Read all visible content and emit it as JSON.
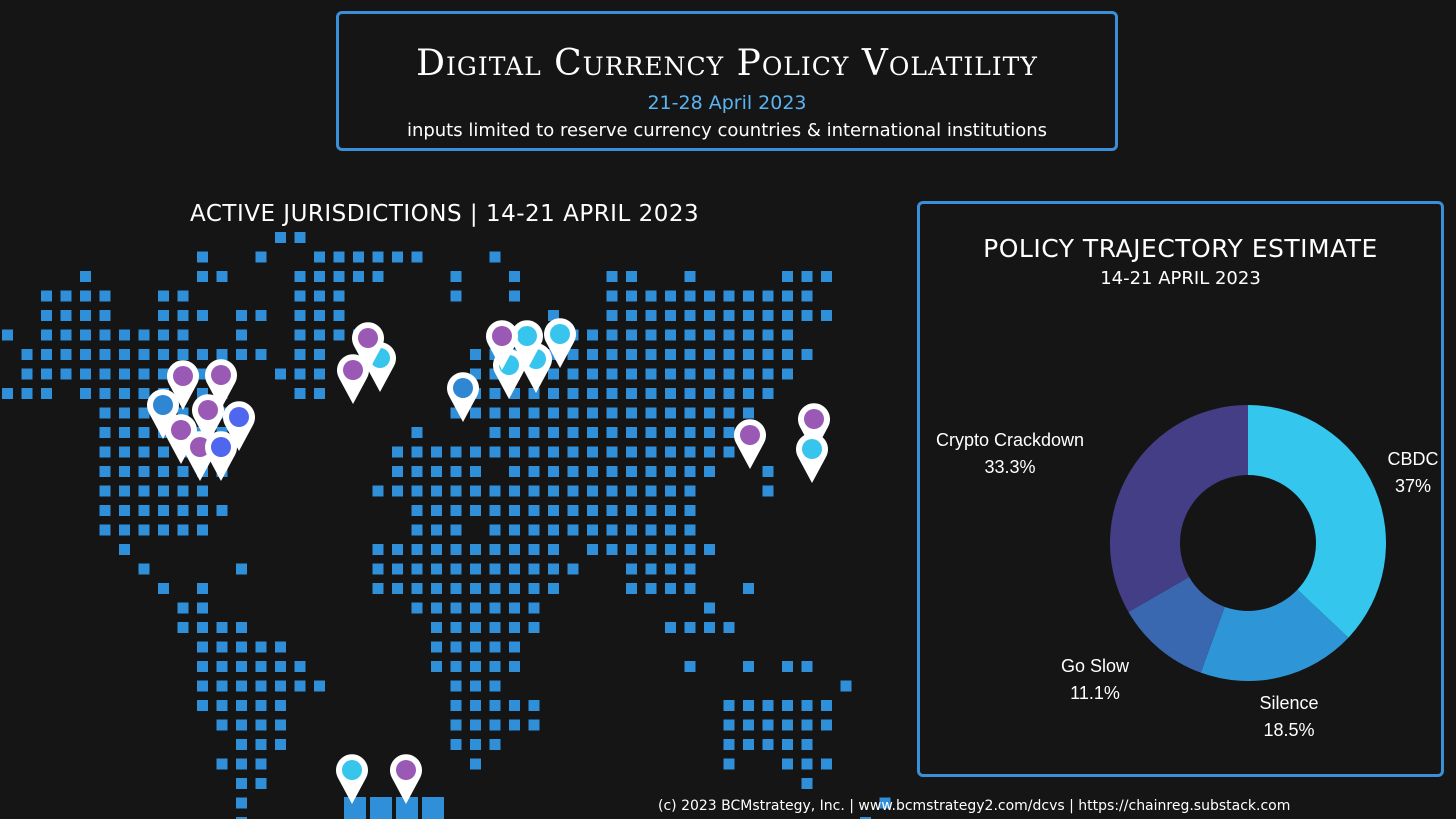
{
  "header": {
    "title": "Digital Currency Policy Volatility",
    "date_range": "21-28 April 2023",
    "subtitle": "inputs limited to reserve currency countries & international institutions"
  },
  "map": {
    "title": "ACTIVE JURISDICTIONS | 14-21 APRIL 2023",
    "tile_color": "#2f8fd8"
  },
  "markers": {
    "colors": {
      "purple": "#9b59b6",
      "cyan": "#37c5ee",
      "blue": "#2f86d2",
      "royal": "#4f66ee"
    }
  },
  "chart_data": {
    "type": "pie",
    "title": "POLICY TRAJECTORY ESTIMATE",
    "subtitle": "14-21 APRIL 2023",
    "donut": true,
    "start_angle_deg": 0,
    "direction": "clockwise",
    "slices": [
      {
        "label": "CBDC",
        "value_label": "37%",
        "value": 37.0,
        "color": "#35c6ee"
      },
      {
        "label": "Silence",
        "value_label": "18.5%",
        "value": 18.5,
        "color": "#2e96d6"
      },
      {
        "label": "Go Slow",
        "value_label": "11.1%",
        "value": 11.1,
        "color": "#3a68b0"
      },
      {
        "label": "Crypto Crackdown",
        "value_label": "33.3%",
        "value": 33.3,
        "color": "#433e85"
      }
    ]
  },
  "footer": {
    "text": "(c) 2023 BCMstrategy, Inc. | www.bcmstrategy2.com/dcvs | https://chainreg.substack.com"
  }
}
